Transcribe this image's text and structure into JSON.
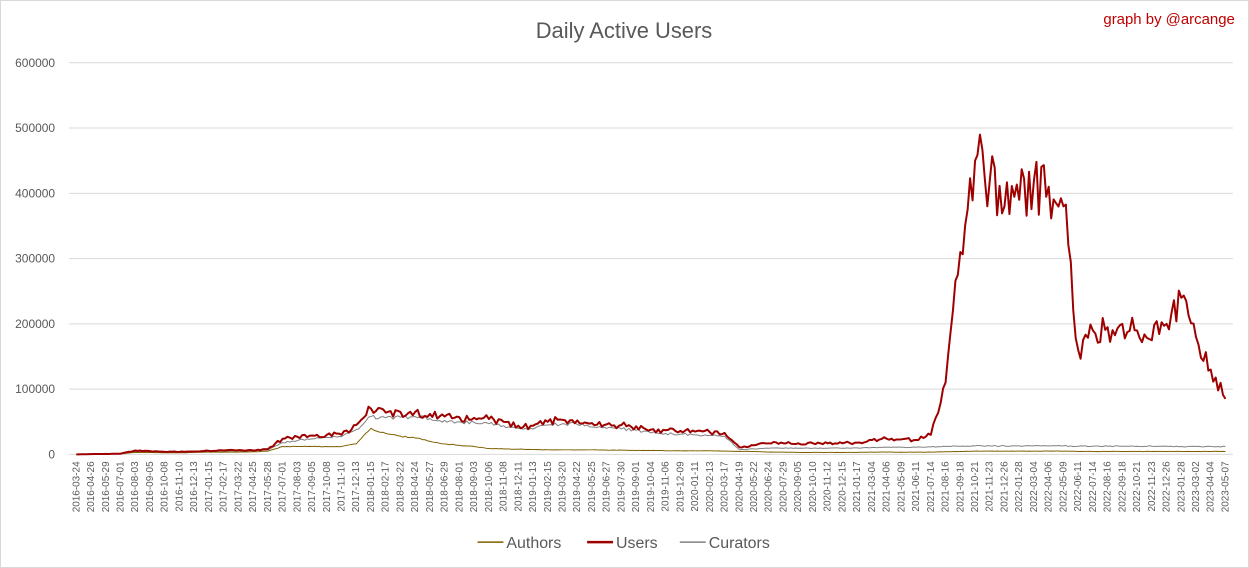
{
  "chart_data": {
    "type": "line",
    "title": "Daily Active Users",
    "credit": "graph by @arcange",
    "xlabel": "",
    "ylabel": "",
    "ylim": [
      0,
      600000
    ],
    "y_ticks": [
      0,
      100000,
      200000,
      300000,
      400000,
      500000,
      600000
    ],
    "grid": true,
    "legend_position": "bottom",
    "x_ticks": [
      "2016-03-24",
      "2016-04-26",
      "2016-05-29",
      "2016-07-01",
      "2016-08-03",
      "2016-09-05",
      "2016-10-08",
      "2016-11-10",
      "2016-12-13",
      "2017-01-15",
      "2017-02-17",
      "2017-03-22",
      "2017-04-25",
      "2017-05-28",
      "2017-07-01",
      "2017-08-03",
      "2017-09-05",
      "2017-10-08",
      "2017-11-10",
      "2017-12-13",
      "2018-01-15",
      "2018-02-17",
      "2018-03-22",
      "2018-04-24",
      "2018-05-27",
      "2018-06-29",
      "2018-08-01",
      "2018-09-03",
      "2018-10-06",
      "2018-11-08",
      "2018-12-11",
      "2019-01-13",
      "2019-02-15",
      "2019-03-20",
      "2019-04-22",
      "2019-05-25",
      "2019-06-27",
      "2019-07-30",
      "2019-09-01",
      "2019-10-04",
      "2019-11-06",
      "2019-12-09",
      "2020-01-11",
      "2020-02-13",
      "2020-03-17",
      "2020-04-19",
      "2020-05-22",
      "2020-06-24",
      "2020-07-29",
      "2020-09-05",
      "2020-10-10",
      "2020-11-12",
      "2020-12-15",
      "2021-01-17",
      "2021-03-04",
      "2021-04-06",
      "2021-05-09",
      "2021-06-11",
      "2021-07-14",
      "2021-08-16",
      "2021-09-18",
      "2021-10-21",
      "2021-11-23",
      "2021-12-26",
      "2022-01-28",
      "2022-03-04",
      "2022-04-06",
      "2022-05-09",
      "2022-06-11",
      "2022-07-14",
      "2022-08-16",
      "2022-09-18",
      "2022-10-21",
      "2022-11-23",
      "2022-12-26",
      "2023-01-28",
      "2023-03-02",
      "2023-04-04",
      "2023-05-07"
    ],
    "series": [
      {
        "name": "Authors",
        "color": "#7f6000",
        "values": [
          0,
          500,
          700,
          1000,
          3000,
          3000,
          2500,
          2500,
          3000,
          3500,
          3500,
          3500,
          4000,
          5000,
          12000,
          12000,
          12000,
          12000,
          12000,
          16000,
          40000,
          32000,
          28000,
          25000,
          20000,
          16000,
          14000,
          12000,
          9000,
          8500,
          8000,
          7500,
          7000,
          7000,
          7000,
          7000,
          6500,
          6500,
          6000,
          6000,
          5500,
          5500,
          5500,
          5500,
          5000,
          4500,
          4500,
          3500,
          3500,
          3000,
          3000,
          3000,
          3000,
          3000,
          3500,
          3500,
          3500,
          3500,
          3500,
          4000,
          4500,
          5000,
          5000,
          5000,
          5000,
          5000,
          5000,
          5000,
          4500,
          4500,
          4500,
          4500,
          4500,
          4500,
          4500,
          4500,
          4500,
          4500,
          4500
        ]
      },
      {
        "name": "Users",
        "color": "#9e0000",
        "values": [
          0,
          500,
          700,
          1000,
          6000,
          5000,
          4000,
          4000,
          4500,
          5500,
          6000,
          6500,
          6000,
          8000,
          24000,
          27000,
          29000,
          30000,
          30000,
          45000,
          70000,
          64000,
          65000,
          65000,
          62000,
          58000,
          57000,
          56000,
          54000,
          50000,
          44000,
          44000,
          50000,
          53000,
          52000,
          48000,
          46000,
          45000,
          43000,
          38000,
          37000,
          36000,
          35000,
          34000,
          33000,
          11000,
          14000,
          17000,
          17000,
          17000,
          17000,
          17000,
          17000,
          18000,
          22000,
          24000,
          23000,
          22000,
          30000,
          110000,
          310000,
          450000,
          420000,
          380000,
          390000,
          420000,
          410000,
          380000,
          160000,
          190000,
          195000,
          200000,
          190000,
          175000,
          200000,
          240000,
          180000,
          130000,
          85000
        ]
      },
      {
        "name": "Curators",
        "color": "#808080",
        "values": [
          0,
          500,
          600,
          800,
          4000,
          3500,
          3000,
          3000,
          3500,
          4500,
          5000,
          5500,
          5500,
          7000,
          18000,
          21000,
          24000,
          26000,
          27000,
          38000,
          58000,
          56000,
          57000,
          58000,
          55000,
          52000,
          50000,
          49000,
          47000,
          44000,
          40000,
          39000,
          45000,
          47000,
          46000,
          42000,
          40000,
          39000,
          37000,
          33000,
          32000,
          31000,
          30000,
          29000,
          28000,
          7000,
          8500,
          9500,
          9500,
          9500,
          9500,
          9500,
          9500,
          10000,
          10500,
          11000,
          11000,
          11000,
          11500,
          12000,
          12500,
          13000,
          13000,
          13000,
          13000,
          13000,
          13000,
          13000,
          12500,
          12500,
          12500,
          12500,
          12500,
          12500,
          12500,
          12000,
          12000,
          12000,
          12000
        ]
      }
    ]
  }
}
